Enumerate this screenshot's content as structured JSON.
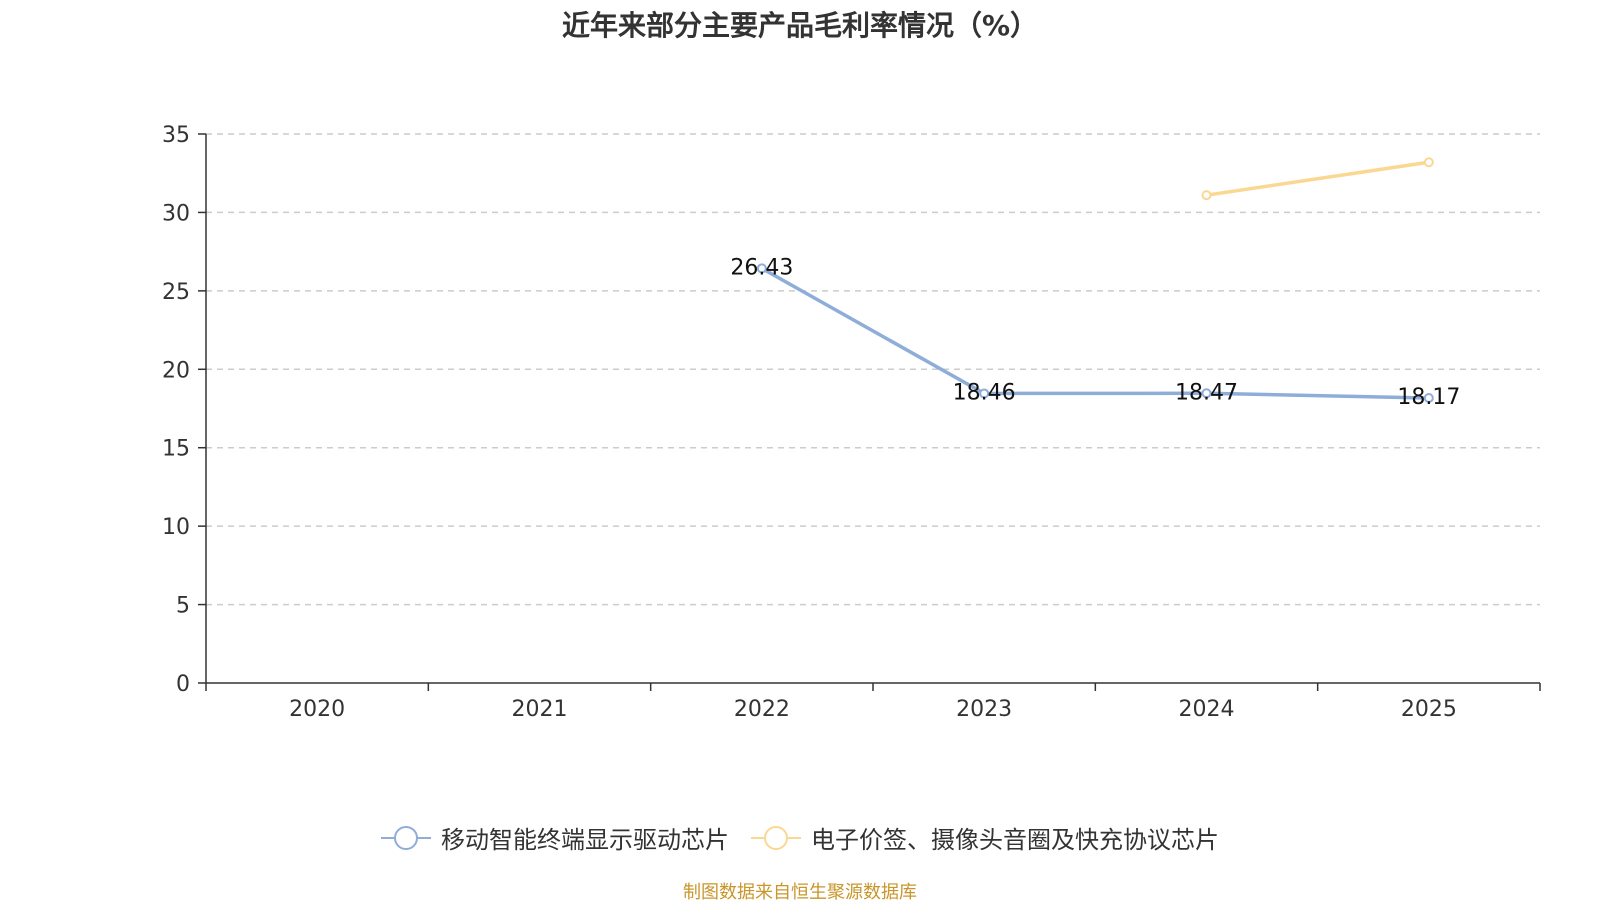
{
  "chart_data": {
    "type": "line",
    "title": "近年来部分主要产品毛利率情况（%）",
    "categories": [
      "2020",
      "2021",
      "2022",
      "2023",
      "2024",
      "2025"
    ],
    "ylim": [
      0,
      35
    ],
    "yticks": [
      0,
      5,
      10,
      15,
      20,
      25,
      30,
      35
    ],
    "grid": true,
    "legend_position": "bottom",
    "series": [
      {
        "name": "移动智能终端显示驱动芯片",
        "color": "#8eadd9",
        "values": [
          null,
          null,
          26.43,
          18.46,
          18.47,
          18.17
        ],
        "labels": [
          null,
          null,
          "26.43",
          "18.46",
          "18.47",
          "18.17"
        ]
      },
      {
        "name": "电子价签、摄像头音圈及快充协议芯片",
        "color": "#fad892",
        "values": [
          null,
          null,
          null,
          null,
          31.1,
          33.2
        ],
        "labels": [
          null,
          null,
          null,
          null,
          null,
          null
        ]
      }
    ]
  },
  "source": "制图数据来自恒生聚源数据库"
}
